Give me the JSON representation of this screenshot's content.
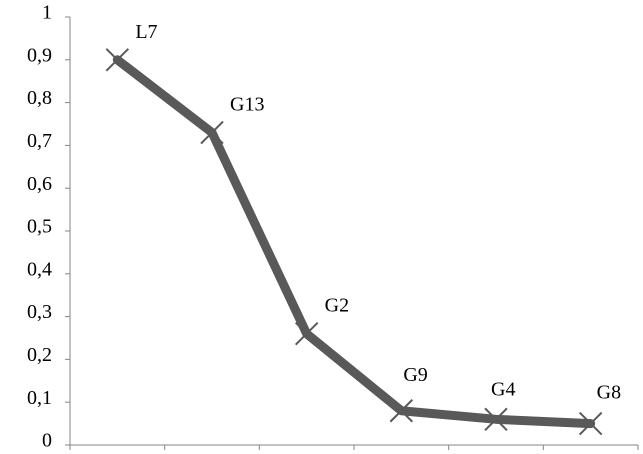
{
  "chart_data": {
    "type": "line",
    "categories": [
      "L7",
      "G13",
      "G2",
      "G9",
      "G4",
      "G8"
    ],
    "values": [
      0.9,
      0.73,
      0.26,
      0.08,
      0.06,
      0.05
    ],
    "point_labels": [
      "L7",
      "G13",
      "G2",
      "G9",
      "G4",
      "G8"
    ],
    "ylim": [
      0,
      1
    ],
    "yticks": [
      0,
      0.1,
      0.2,
      0.3,
      0.4,
      0.5,
      0.6,
      0.7,
      0.8,
      0.9,
      1
    ],
    "ytick_labels": [
      "0",
      "0,1",
      "0,2",
      "0,3",
      "0,4",
      "0,5",
      "0,6",
      "0,7",
      "0,8",
      "0,9",
      "1"
    ],
    "xtick_labels_shown": false,
    "grid": false,
    "legend": "none",
    "colors": {
      "line": "#595959",
      "marker": "#595959",
      "axis": "#868686"
    }
  }
}
